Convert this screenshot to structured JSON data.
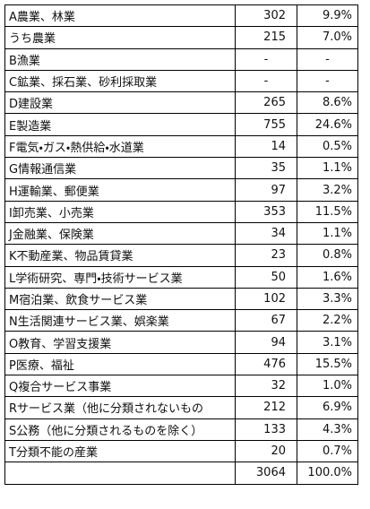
{
  "table": {
    "rows": [
      {
        "label": "A農業、林業",
        "count": 302,
        "share": "9.9%"
      },
      {
        "label": "うち農業",
        "count": 215,
        "share": "7.0%"
      },
      {
        "label": "B漁業",
        "count": "-",
        "share": "-"
      },
      {
        "label": "C鉱業、採石業、砂利採取業",
        "count": "-",
        "share": "-"
      },
      {
        "label": "D建設業",
        "count": 265,
        "share": "8.6%"
      },
      {
        "label": "E製造業",
        "count": 755,
        "share": "24.6%"
      },
      {
        "label": "F電気・ガス・熱供給・水道業",
        "count": 14,
        "share": "0.5%"
      },
      {
        "label": "G情報通信業",
        "count": 35,
        "share": "1.1%"
      },
      {
        "label": "H運輸業、郵便業",
        "count": 97,
        "share": "3.2%"
      },
      {
        "label": "I卸売業、小売業",
        "count": 353,
        "share": "11.5%"
      },
      {
        "label": "J金融業、保険業",
        "count": 34,
        "share": "1.1%"
      },
      {
        "label": "K不動産業、物品賃貸業",
        "count": 23,
        "share": "0.8%"
      },
      {
        "label": "L学術研究、専門・技術サービス業",
        "count": 50,
        "share": "1.6%"
      },
      {
        "label": "M宿泊業、飲食サービス業",
        "count": 102,
        "share": "3.3%"
      },
      {
        "label": "N生活関連サービス業、娯楽業",
        "count": 67,
        "share": "2.2%"
      },
      {
        "label": "O教育、学習支援業",
        "count": 94,
        "share": "3.1%"
      },
      {
        "label": "P医療、福祉",
        "count": 476,
        "share": "15.5%"
      },
      {
        "label": "Q複合サービス事業",
        "count": 32,
        "share": "1.0%"
      },
      {
        "label": "Rサービス業（他に分類されないもの",
        "count": 212,
        "share": "6.9%"
      },
      {
        "label": "S公務（他に分類されるものを除く）",
        "count": 133,
        "share": "4.3%"
      },
      {
        "label": "T分類不能の産業",
        "count": 20,
        "share": "0.7%"
      },
      {
        "count": 3064,
        "share": "100.0%"
      }
    ]
  }
}
